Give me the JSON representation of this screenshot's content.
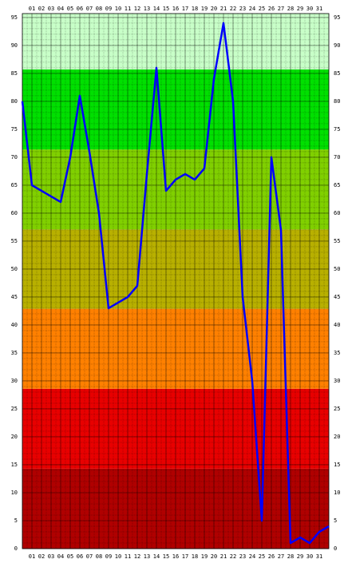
{
  "chart_data": {
    "type": "line",
    "x": [
      0,
      1,
      2,
      3,
      4,
      5,
      6,
      7,
      8,
      9,
      10,
      11,
      12,
      13,
      14,
      15,
      16,
      17,
      18,
      19,
      20,
      21,
      22,
      23,
      24,
      25,
      26,
      27,
      28,
      29,
      30,
      31,
      32
    ],
    "series": [
      {
        "color": "#0000ff",
        "values": [
          80,
          65,
          64,
          63,
          62,
          70,
          81,
          71,
          60,
          43,
          44,
          45,
          47,
          67,
          86,
          64,
          66,
          67,
          66,
          68,
          84,
          94,
          80,
          45,
          30,
          5,
          70,
          57,
          1,
          2,
          1,
          3,
          4
        ]
      }
    ],
    "xlim": [
      0,
      32
    ],
    "ylim": [
      0,
      95.7
    ],
    "xticks": [
      {
        "value": 1,
        "label": "01"
      },
      {
        "value": 2,
        "label": "02"
      },
      {
        "value": 3,
        "label": "03"
      },
      {
        "value": 4,
        "label": "04"
      },
      {
        "value": 5,
        "label": "05"
      },
      {
        "value": 6,
        "label": "06"
      },
      {
        "value": 7,
        "label": "07"
      },
      {
        "value": 8,
        "label": "08"
      },
      {
        "value": 9,
        "label": "09"
      },
      10,
      11,
      12,
      13,
      14,
      15,
      16,
      17,
      18,
      19,
      20,
      21,
      22,
      23,
      24,
      25,
      26,
      27,
      28,
      29,
      30,
      31
    ],
    "yticks": [
      0,
      5,
      10,
      15,
      20,
      25,
      30,
      35,
      40,
      45,
      50,
      55,
      60,
      65,
      70,
      75,
      80,
      85,
      90,
      95
    ],
    "bands": [
      {
        "from": 0,
        "to": 14.3,
        "color": "#b00000"
      },
      {
        "from": 14.3,
        "to": 28.6,
        "color": "#e80000"
      },
      {
        "from": 28.6,
        "to": 42.9,
        "color": "#ff8000"
      },
      {
        "from": 42.9,
        "to": 57.1,
        "color": "#b8b000"
      },
      {
        "from": 57.1,
        "to": 71.4,
        "color": "#80d000"
      },
      {
        "from": 71.4,
        "to": 85.7,
        "color": "#00e000"
      },
      {
        "from": 85.7,
        "to": 95.7,
        "color": "#c8ffc8"
      }
    ],
    "grid": true,
    "minor_grid": {
      "x": 0.5,
      "y": 1
    }
  }
}
